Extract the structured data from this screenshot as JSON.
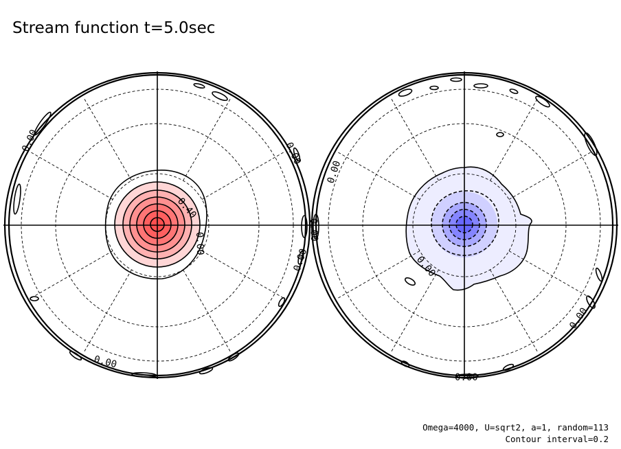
{
  "title": "Stream function t=5.0sec",
  "footer": {
    "params": "Omega=4000, U=sqrt2, a=1, random=113",
    "interval": "Contour interval=0.2"
  },
  "colors": {
    "positive": "#ff4545",
    "negative": "#5050ff",
    "line": "#000000"
  },
  "left_hemisphere": {
    "labels": [
      "0.00",
      "0.40",
      "0.00",
      "0.00",
      "0.00",
      "0.00"
    ],
    "field": "positive"
  },
  "right_hemisphere": {
    "labels": [
      "0.00",
      "0.00",
      "0.00",
      "0.00",
      "0.00"
    ],
    "field": "negative"
  }
}
